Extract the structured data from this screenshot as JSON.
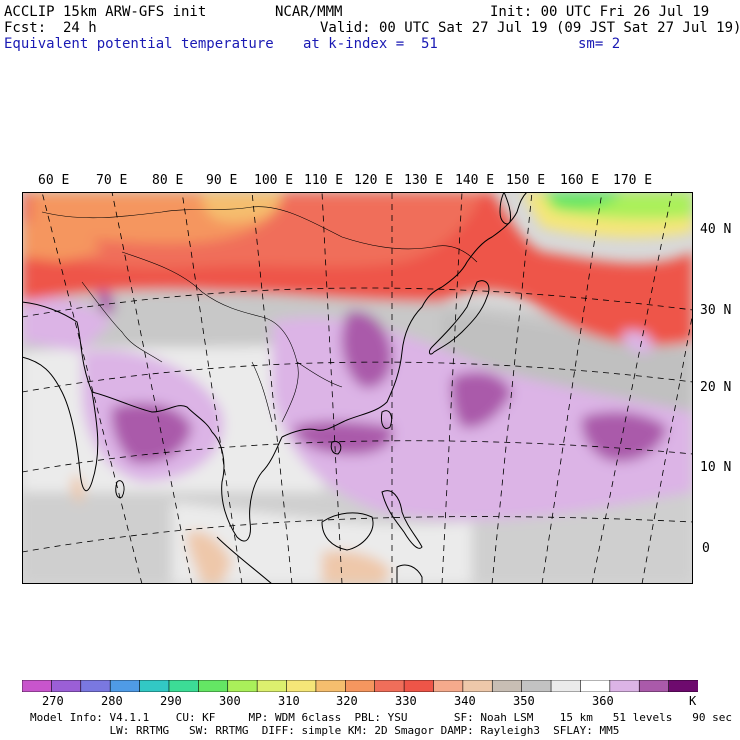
{
  "header": {
    "line1_left": "ACCLIP 15km ARW-GFS init",
    "line1_center": "NCAR/MMM",
    "line1_right": "Init: 00 UTC Fri 26 Jul 19",
    "line2_left": "Fcst:  24 h",
    "line2_right": "Valid: 00 UTC Sat 27 Jul 19 (09 JST Sat 27 Jul 19)",
    "line3_left": "Equivalent potential temperature",
    "line3_center": "at k-index =  51",
    "line3_right": "sm= 2"
  },
  "map": {
    "lon_labels": [
      "60 E",
      "70 E",
      "80 E",
      "90 E",
      "100 E",
      "110 E",
      "120 E",
      "130 E",
      "140 E",
      "150 E",
      "160 E",
      "170 E"
    ],
    "lat_labels": [
      "40 N",
      "30 N",
      "20 N",
      "10 N",
      "0"
    ]
  },
  "colorbar": {
    "colors": [
      "#c855cc",
      "#9b5fd6",
      "#7a78e0",
      "#4f9be6",
      "#32c8c4",
      "#3cdc96",
      "#64e664",
      "#aaf05a",
      "#dcf06e",
      "#f5e678",
      "#f5be6e",
      "#f5965f",
      "#f06e5a",
      "#ee5548",
      "#f5aa8c",
      "#eec8aa",
      "#c8beb4",
      "#c3c3c3",
      "#ebebeb",
      "#ffffff",
      "#dcb4e6",
      "#aa5aaa",
      "#6e0a6e"
    ],
    "labels": [
      "270",
      "280",
      "290",
      "300",
      "310",
      "320",
      "330",
      "340",
      "350",
      "360"
    ],
    "unit": "K"
  },
  "footer": {
    "line1": "Model Info: V4.1.1    CU: KF     MP: WDM 6class  PBL: YSU       SF: Noah LSM    15 km   51 levels   90 sec",
    "line2": "            LW: RRTMG   SW: RRTMG  DIFF: simple KM: 2D Smagor DAMP: Rayleigh3  SFLAY: MM5"
  }
}
